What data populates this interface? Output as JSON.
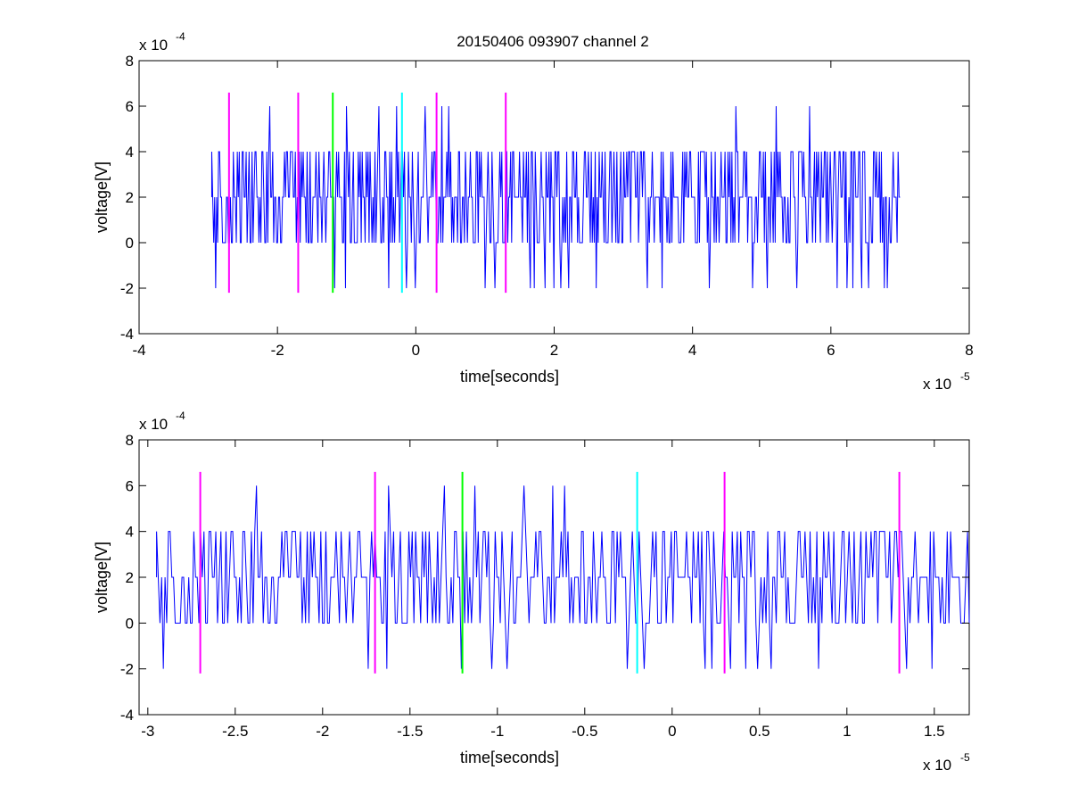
{
  "figure_title": "20150406 093907 channel 2",
  "colors": {
    "signal": "#0000ff",
    "marker_magenta": "#ff00ff",
    "marker_green": "#00ff00",
    "marker_cyan": "#00ffff",
    "axes": "#000000",
    "background": "#ffffff"
  },
  "chart_data": [
    {
      "type": "line",
      "title": "20150406 093907 channel 2",
      "xlabel": "time[seconds]",
      "ylabel": "voltage[V]",
      "x_multiplier": "x 10",
      "x_exponent": "-5",
      "y_multiplier": "x 10",
      "y_exponent": "-4",
      "xlim": [
        -4,
        8
      ],
      "ylim": [
        -4,
        8
      ],
      "xticks": [
        -4,
        -2,
        0,
        2,
        4,
        6,
        8
      ],
      "xtick_labels": [
        "-4",
        "-2",
        "0",
        "2",
        "4",
        "6",
        "8"
      ],
      "yticks": [
        -4,
        -2,
        0,
        2,
        4,
        6,
        8
      ],
      "ytick_labels": [
        "-4",
        "-2",
        "0",
        "2",
        "4",
        "6",
        "8"
      ],
      "grid": false,
      "series": [
        {
          "style": "step-noise",
          "x_start": -2.95,
          "x_end": 7.0,
          "levels": [
            -2,
            0,
            2,
            4,
            6
          ],
          "baseline": 2
        }
      ],
      "vlines": [
        {
          "x": -2.7,
          "y0": -2.2,
          "y1": 6.6,
          "color": "magenta"
        },
        {
          "x": -1.7,
          "y0": -2.2,
          "y1": 6.6,
          "color": "magenta"
        },
        {
          "x": -1.2,
          "y0": -2.2,
          "y1": 6.6,
          "color": "green"
        },
        {
          "x": -0.2,
          "y0": -2.2,
          "y1": 6.6,
          "color": "cyan"
        },
        {
          "x": 0.3,
          "y0": -2.2,
          "y1": 6.6,
          "color": "magenta"
        },
        {
          "x": 1.3,
          "y0": -2.2,
          "y1": 6.6,
          "color": "magenta"
        }
      ]
    },
    {
      "type": "line",
      "title": "",
      "xlabel": "time[seconds]",
      "ylabel": "voltage[V]",
      "x_multiplier": "x 10",
      "x_exponent": "-5",
      "y_multiplier": "x 10",
      "y_exponent": "-4",
      "xlim": [
        -3.05,
        1.7
      ],
      "ylim": [
        -4,
        8
      ],
      "xticks": [
        -3,
        -2.5,
        -2,
        -1.5,
        -1,
        -0.5,
        0,
        0.5,
        1,
        1.5
      ],
      "xtick_labels": [
        "-3",
        "-2.5",
        "-2",
        "-1.5",
        "-1",
        "-0.5",
        "0",
        "0.5",
        "1",
        "1.5"
      ],
      "yticks": [
        -4,
        -2,
        0,
        2,
        4,
        6,
        8
      ],
      "ytick_labels": [
        "-4",
        "-2",
        "0",
        "2",
        "4",
        "6",
        "8"
      ],
      "grid": false,
      "series": [
        {
          "style": "step-noise",
          "x_start": -2.95,
          "x_end": 1.7,
          "levels": [
            -2,
            0,
            2,
            4,
            6
          ],
          "baseline": 2
        }
      ],
      "vlines": [
        {
          "x": -2.7,
          "y0": -2.2,
          "y1": 6.6,
          "color": "magenta"
        },
        {
          "x": -1.7,
          "y0": -2.2,
          "y1": 6.6,
          "color": "magenta"
        },
        {
          "x": -1.2,
          "y0": -2.2,
          "y1": 6.6,
          "color": "green"
        },
        {
          "x": -0.2,
          "y0": -2.2,
          "y1": 6.6,
          "color": "cyan"
        },
        {
          "x": 0.3,
          "y0": -2.2,
          "y1": 6.6,
          "color": "magenta"
        },
        {
          "x": 1.3,
          "y0": -2.2,
          "y1": 6.6,
          "color": "magenta"
        }
      ]
    }
  ]
}
